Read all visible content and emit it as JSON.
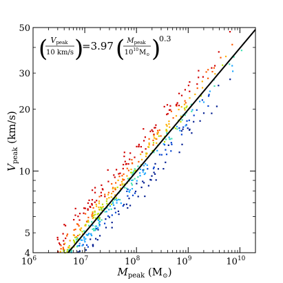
{
  "chart_data": {
    "type": "scatter",
    "title": "",
    "x_scale": "log",
    "y_scale": "log",
    "xlim": [
      1000000,
      20000000000
    ],
    "ylim": [
      4,
      50
    ],
    "grid": false,
    "legend": "none",
    "xlabel": {
      "main": "M",
      "sub": "peak",
      "unit": " (M",
      "unit_sub": "⊙",
      "unit_close": ")"
    },
    "ylabel": {
      "main": "V",
      "sub": "peak",
      "unit": " (km/s)"
    },
    "x_ticks": [
      {
        "value": 1000000,
        "base": "10",
        "exp": "6"
      },
      {
        "value": 10000000,
        "base": "10",
        "exp": "7"
      },
      {
        "value": 100000000,
        "base": "10",
        "exp": "8"
      },
      {
        "value": 1000000000,
        "base": "10",
        "exp": "9"
      },
      {
        "value": 10000000000,
        "base": "10",
        "exp": "10"
      }
    ],
    "y_ticks": [
      {
        "value": 4,
        "label": "4"
      },
      {
        "value": 5,
        "label": "5"
      },
      {
        "value": 10,
        "label": "10"
      },
      {
        "value": 20,
        "label": "20"
      },
      {
        "value": 30,
        "label": "30"
      },
      {
        "value": 40,
        "label": ""
      },
      {
        "value": 50,
        "label": "50"
      }
    ],
    "annotation": {
      "lhs_num_main": "V",
      "lhs_num_sub": "peak",
      "lhs_den": "10 km/s",
      "equals": "=3.97",
      "rhs_num_main": "M",
      "rhs_num_sub": "peak",
      "rhs_den_main": "10",
      "rhs_den_exp": "10",
      "rhs_den_unit": "M",
      "rhs_den_unit_sub": "⊙",
      "power": "0.3"
    },
    "fit_line": {
      "name": "",
      "normalization": 3.97,
      "pivot": 10000000000,
      "exponent": 0.3,
      "color": "#000000"
    },
    "colors": [
      "#d00000",
      "#ff5a00",
      "#ffb000",
      "#b8e000",
      "#40e0b0",
      "#20a8ff",
      "#0040d0",
      "#001c90"
    ],
    "point_scatter": {
      "count": 620,
      "spread_dex": 0.07,
      "color_by": "residual"
    }
  }
}
